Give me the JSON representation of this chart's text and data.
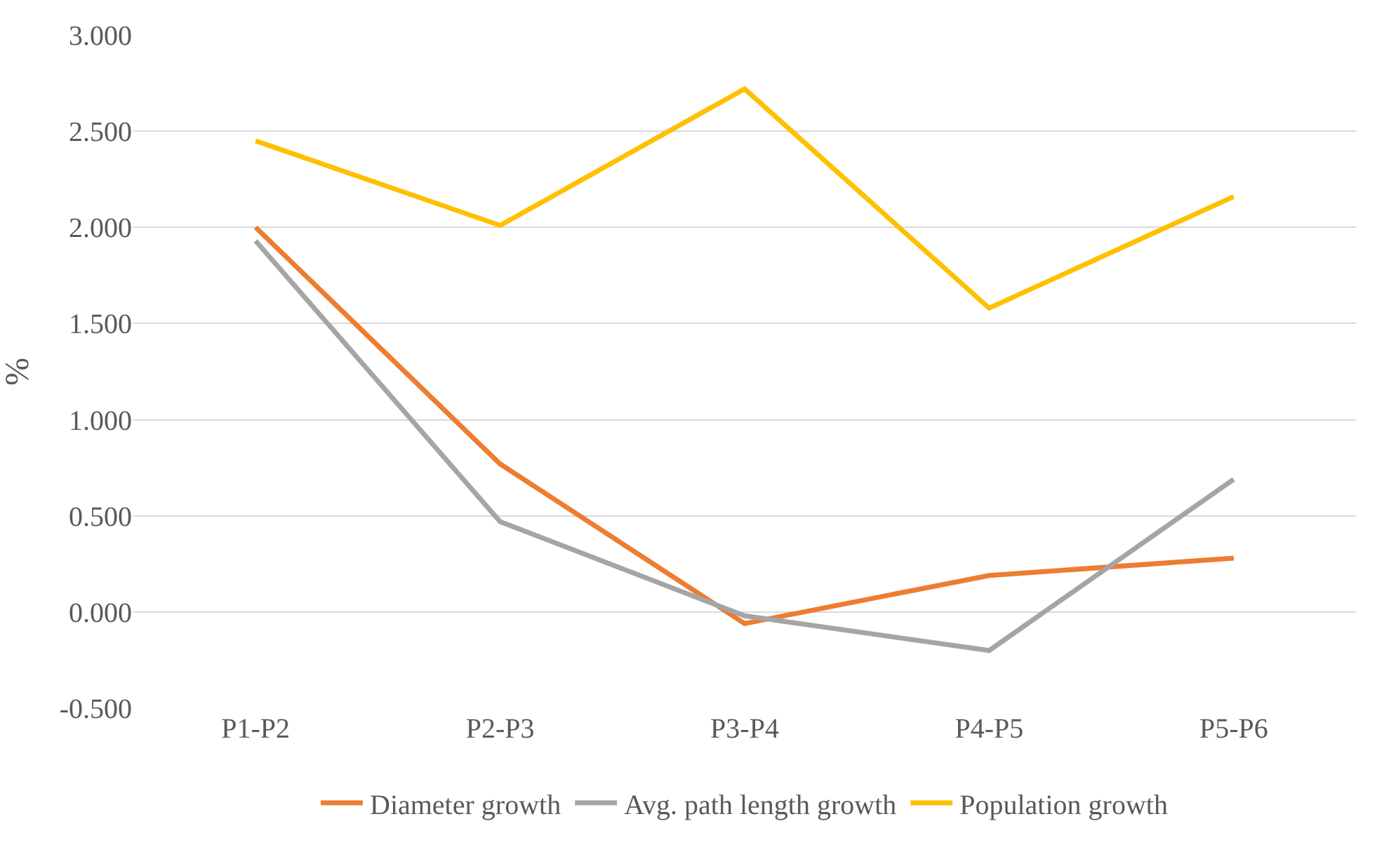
{
  "chart_data": {
    "type": "line",
    "ylabel": "%",
    "categories": [
      "P1-P2",
      "P2-P3",
      "P3-P4",
      "P4-P5",
      "P5-P6"
    ],
    "series": [
      {
        "name": "Diameter growth",
        "color": "#ed7d31",
        "values": [
          2.0,
          0.77,
          -0.06,
          0.19,
          0.28
        ]
      },
      {
        "name": "Avg. path length growth",
        "color": "#a5a5a5",
        "values": [
          1.93,
          0.47,
          -0.02,
          -0.2,
          0.69
        ]
      },
      {
        "name": "Population growth",
        "color": "#ffc000",
        "values": [
          2.45,
          2.01,
          2.72,
          1.58,
          2.16
        ]
      }
    ],
    "ylim": [
      -0.5,
      3.0
    ],
    "yticks": [
      {
        "value": -0.5,
        "label": "-0.500"
      },
      {
        "value": 0,
        "label": "0.000"
      },
      {
        "value": 0.5,
        "label": "0.500"
      },
      {
        "value": 1.0,
        "label": "1.000"
      },
      {
        "value": 1.5,
        "label": "1.500"
      },
      {
        "value": 2.0,
        "label": "2.000"
      },
      {
        "value": 2.5,
        "label": "2.500"
      },
      {
        "value": 3.0,
        "label": "3.000"
      }
    ],
    "grid": "y",
    "legend": "bottom",
    "marker": "none",
    "line_style": "solid"
  }
}
